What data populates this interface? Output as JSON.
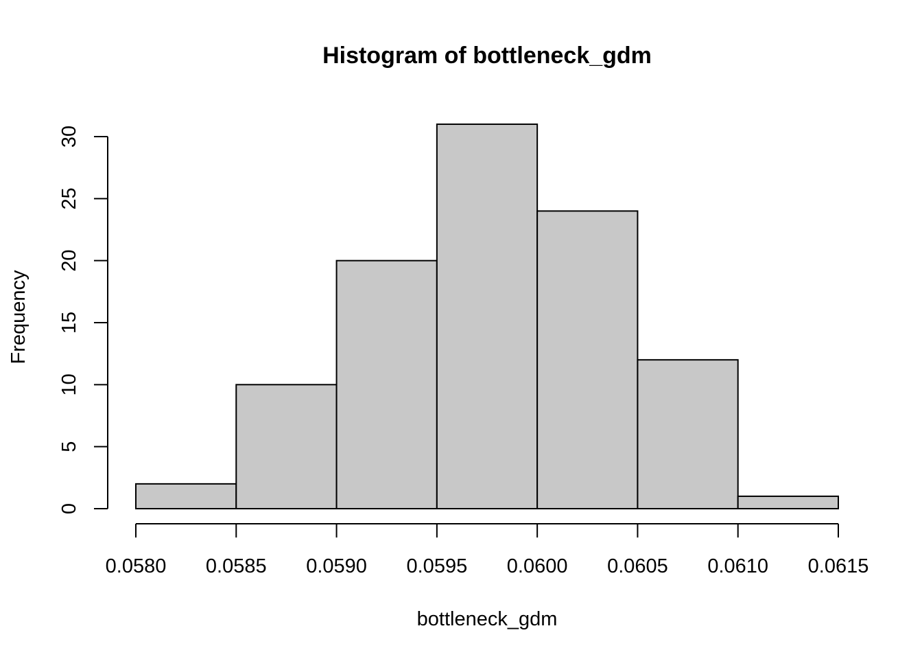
{
  "chart_data": {
    "type": "bar",
    "subtype": "histogram",
    "title": "Histogram of bottleneck_gdm",
    "xlabel": "bottleneck_gdm",
    "ylabel": "Frequency",
    "bins": [
      {
        "start": 0.058,
        "end": 0.0585,
        "count": 2
      },
      {
        "start": 0.0585,
        "end": 0.059,
        "count": 10
      },
      {
        "start": 0.059,
        "end": 0.0595,
        "count": 20
      },
      {
        "start": 0.0595,
        "end": 0.06,
        "count": 31
      },
      {
        "start": 0.06,
        "end": 0.0605,
        "count": 24
      },
      {
        "start": 0.0605,
        "end": 0.061,
        "count": 12
      },
      {
        "start": 0.061,
        "end": 0.0615,
        "count": 1
      }
    ],
    "xlim": [
      0.058,
      0.0615
    ],
    "ylim": [
      0,
      31
    ],
    "xticks": [
      "0.0580",
      "0.0585",
      "0.0590",
      "0.0595",
      "0.0600",
      "0.0605",
      "0.0610",
      "0.0615"
    ],
    "yticks": [
      "0",
      "5",
      "10",
      "15",
      "20",
      "25",
      "30"
    ],
    "grid": false,
    "bar_color": "#c8c8c8",
    "edge_color": "#000000"
  }
}
